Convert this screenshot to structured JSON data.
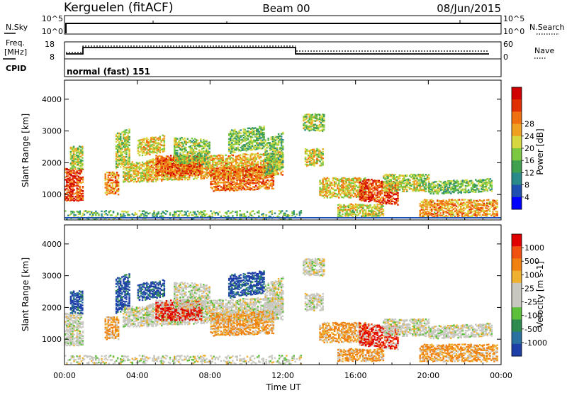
{
  "header": {
    "station": "Kerguelen (fitACF)",
    "beam": "Beam 00",
    "date": "08/Jun/2015"
  },
  "status_panels": {
    "nsky_label": "N.Sky",
    "nsearch_label": "N.Search",
    "noise_ticks": [
      "10^5",
      "10^0"
    ],
    "freq_label_line1": "Freq.",
    "freq_label_line2": "[MHz]",
    "freq_ticks": [
      "18",
      "8"
    ],
    "nave_label": "Nave",
    "nave_ticks": [
      "60",
      "0"
    ],
    "cpid_label": "CPID",
    "cpid_text": "normal (fast) 151"
  },
  "chart_data": [
    {
      "type": "heatmap",
      "name": "power",
      "xlabel": "Time UT",
      "ylabel": "Slant Range [km]",
      "xlim_hours": [
        0,
        24
      ],
      "x_ticks": [
        "00:00",
        "04:00",
        "08:00",
        "12:00",
        "16:00",
        "20:00",
        "00:00"
      ],
      "ylim": [
        200,
        4600
      ],
      "y_ticks": [
        1000,
        2000,
        3000,
        4000
      ],
      "colorbar_label": "Power [dB]",
      "colorbar_ticks": [
        "4",
        "8",
        "12",
        "16",
        "20",
        "24",
        "28"
      ],
      "colorbar_colors": [
        "#0000ff",
        "#1f4fb0",
        "#2a8a8a",
        "#3fa050",
        "#7cc840",
        "#d7d840",
        "#f0a020",
        "#f07010",
        "#e03000",
        "#d00000"
      ]
    },
    {
      "type": "heatmap",
      "name": "velocity",
      "xlabel": "Time UT",
      "ylabel": "Slant Range [km]",
      "xlim_hours": [
        0,
        24
      ],
      "x_ticks": [
        "00:00",
        "04:00",
        "08:00",
        "12:00",
        "16:00",
        "20:00",
        "00:00"
      ],
      "ylim": [
        200,
        4600
      ],
      "y_ticks": [
        1000,
        2000,
        3000,
        4000
      ],
      "colorbar_label": "Velocity [m s-1]",
      "colorbar_ticks": [
        "1000",
        "500",
        "100",
        "25",
        "-25",
        "-100",
        "-500",
        "-1000"
      ],
      "colorbar_colors": [
        "#1f3fa8",
        "#2a70a0",
        "#2f8a50",
        "#5cc03a",
        "#c8c8c0",
        "#c8c8c0",
        "#f0b030",
        "#f08010",
        "#f05010",
        "#e00000"
      ]
    }
  ],
  "palettes": {
    "power": [
      "#1f4fb0",
      "#2a8a8a",
      "#3fa050",
      "#7cc840",
      "#d7d840",
      "#f0a020",
      "#f07010",
      "#e03000",
      "#d00000"
    ],
    "velocity_pos": [
      "#1f3fa8",
      "#2a70a0",
      "#2f8a50",
      "#5cc03a"
    ],
    "velocity_neg": [
      "#f0b030",
      "#f08010",
      "#f05010",
      "#e00000"
    ],
    "velocity_ground": "#c8c8c0"
  }
}
